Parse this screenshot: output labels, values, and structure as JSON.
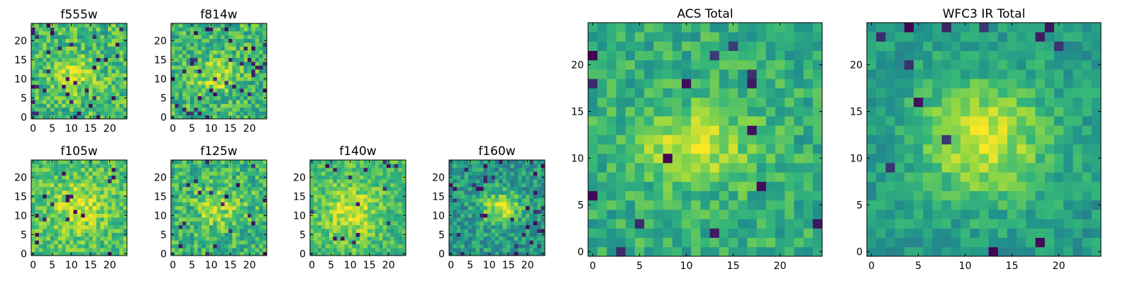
{
  "figure": {
    "colormap": [
      "#440154",
      "#31688e",
      "#21918c",
      "#35b779",
      "#90d743",
      "#fde725"
    ],
    "frame_color": "#000000"
  },
  "chart_data": [
    {
      "type": "heatmap",
      "title": "f555w",
      "grid_size": [
        25,
        25
      ],
      "xlim": [
        0,
        25
      ],
      "ylim": [
        0,
        25
      ],
      "xticks": [
        0,
        5,
        10,
        15,
        20
      ],
      "yticks": [
        0,
        5,
        10,
        15,
        20
      ],
      "xlabel": "",
      "ylabel": "",
      "grid": false,
      "feature": {
        "center": [
          11,
          11
        ],
        "sigma": [
          3.5,
          3.0
        ],
        "peak": 0.3
      },
      "noise": 0.23,
      "background": 0.62,
      "low_outliers": 0.05,
      "seed": 11
    },
    {
      "type": "heatmap",
      "title": "f814w",
      "grid_size": [
        25,
        25
      ],
      "xlim": [
        0,
        25
      ],
      "ylim": [
        0,
        25
      ],
      "xticks": [
        0,
        5,
        10,
        15,
        20
      ],
      "yticks": [
        0,
        5,
        10,
        15,
        20
      ],
      "xlabel": "",
      "ylabel": "",
      "grid": false,
      "feature": {
        "center": [
          11,
          11
        ],
        "sigma": [
          3.5,
          3.0
        ],
        "peak": 0.3
      },
      "noise": 0.23,
      "background": 0.6,
      "low_outliers": 0.05,
      "seed": 23
    },
    {
      "type": "heatmap",
      "title": "f105w",
      "grid_size": [
        25,
        25
      ],
      "xlim": [
        0,
        25
      ],
      "ylim": [
        0,
        25
      ],
      "xticks": [
        0,
        5,
        10,
        15,
        20
      ],
      "yticks": [
        0,
        5,
        10,
        15,
        20
      ],
      "xlabel": "",
      "ylabel": "",
      "grid": false,
      "feature": {
        "center": [
          12,
          12
        ],
        "sigma": [
          5,
          4.5
        ],
        "peak": 0.25
      },
      "noise": 0.2,
      "background": 0.65,
      "low_outliers": 0.03,
      "seed": 37
    },
    {
      "type": "heatmap",
      "title": "f125w",
      "grid_size": [
        25,
        25
      ],
      "xlim": [
        0,
        25
      ],
      "ylim": [
        0,
        25
      ],
      "xticks": [
        0,
        5,
        10,
        15,
        20
      ],
      "yticks": [
        0,
        5,
        10,
        15,
        20
      ],
      "xlabel": "",
      "ylabel": "",
      "grid": false,
      "feature": {
        "center": [
          12,
          12
        ],
        "sigma": [
          4.5,
          4
        ],
        "peak": 0.25
      },
      "noise": 0.22,
      "background": 0.58,
      "low_outliers": 0.04,
      "seed": 41
    },
    {
      "type": "heatmap",
      "title": "f140w",
      "grid_size": [
        25,
        25
      ],
      "xlim": [
        0,
        25
      ],
      "ylim": [
        0,
        25
      ],
      "xticks": [
        0,
        5,
        10,
        15,
        20
      ],
      "yticks": [
        0,
        5,
        10,
        15,
        20
      ],
      "xlabel": "",
      "ylabel": "",
      "grid": false,
      "feature": {
        "center": [
          10,
          11
        ],
        "sigma": [
          5,
          5
        ],
        "peak": 0.3
      },
      "noise": 0.18,
      "background": 0.62,
      "low_outliers": 0.03,
      "seed": 53
    },
    {
      "type": "heatmap",
      "title": "f160w",
      "grid_size": [
        25,
        25
      ],
      "xlim": [
        0,
        25
      ],
      "ylim": [
        0,
        25
      ],
      "xticks": [
        0,
        5,
        10,
        15,
        20
      ],
      "yticks": [
        0,
        5,
        10,
        15,
        20
      ],
      "xlabel": "",
      "ylabel": "",
      "grid": false,
      "feature": {
        "center": [
          13,
          12
        ],
        "sigma": [
          3.5,
          3
        ],
        "peak": 0.45
      },
      "noise": 0.2,
      "background": 0.45,
      "low_outliers": 0.05,
      "seed": 67
    },
    {
      "type": "heatmap",
      "title": "ACS Total",
      "grid_size": [
        25,
        25
      ],
      "xlim": [
        0,
        25
      ],
      "ylim": [
        0,
        25
      ],
      "xticks": [
        0,
        5,
        10,
        15,
        20
      ],
      "yticks": [
        0,
        5,
        10,
        15,
        20
      ],
      "xlabel": "",
      "ylabel": "",
      "grid": false,
      "feature": {
        "center": [
          11,
          11.5
        ],
        "sigma": [
          4,
          2.8
        ],
        "peak": 0.4
      },
      "noise": 0.17,
      "background": 0.55,
      "low_outliers": 0.03,
      "seed": 79
    },
    {
      "type": "heatmap",
      "title": "WFC3 IR Total",
      "grid_size": [
        25,
        25
      ],
      "xlim": [
        0,
        25
      ],
      "ylim": [
        0,
        25
      ],
      "xticks": [
        0,
        5,
        10,
        15,
        20
      ],
      "yticks": [
        0,
        5,
        10,
        15,
        20
      ],
      "xlabel": "",
      "ylabel": "",
      "grid": false,
      "feature": {
        "center": [
          12,
          12
        ],
        "sigma": [
          5,
          4.5
        ],
        "peak": 0.45
      },
      "noise": 0.14,
      "background": 0.45,
      "low_outliers": 0.025,
      "seed": 97
    }
  ]
}
